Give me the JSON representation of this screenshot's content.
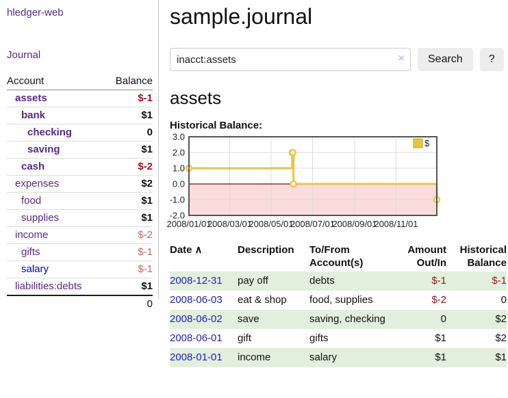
{
  "app": {
    "brand": "hledger-web"
  },
  "sidebar": {
    "nav_journal": "Journal",
    "headers": {
      "account": "Account",
      "balance": "Balance"
    },
    "accounts": [
      {
        "name": "assets",
        "depth": 0,
        "bold": true,
        "balance": "$-1",
        "balance_style": "neg-strong"
      },
      {
        "name": "bank",
        "depth": 1,
        "bold": true,
        "balance": "$1",
        "balance_style": "pos"
      },
      {
        "name": "checking",
        "depth": 2,
        "bold": true,
        "balance": "0",
        "balance_style": "pos"
      },
      {
        "name": "saving",
        "depth": 2,
        "bold": true,
        "balance": "$1",
        "balance_style": "pos"
      },
      {
        "name": "cash",
        "depth": 1,
        "bold": true,
        "balance": "$-2",
        "balance_style": "neg-strong"
      },
      {
        "name": "expenses",
        "depth": 0,
        "bold": false,
        "balance": "$2",
        "balance_style": "pos"
      },
      {
        "name": "food",
        "depth": 1,
        "bold": false,
        "balance": "$1",
        "balance_style": "pos"
      },
      {
        "name": "supplies",
        "depth": 1,
        "bold": false,
        "balance": "$1",
        "balance_style": "pos"
      },
      {
        "name": "income",
        "depth": 0,
        "bold": false,
        "balance": "$-2",
        "balance_style": "neg-soft"
      },
      {
        "name": "gifts",
        "depth": 1,
        "bold": false,
        "balance": "$-1",
        "balance_style": "neg-soft"
      },
      {
        "name": "salary",
        "depth": 1,
        "bold": false,
        "blue": true,
        "balance": "$-1",
        "balance_style": "neg-soft"
      },
      {
        "name": "liabilities:debts",
        "depth": 0,
        "bold": false,
        "balance": "$1",
        "balance_style": "pos"
      }
    ],
    "total": "0"
  },
  "header": {
    "title": "sample.journal"
  },
  "search": {
    "value": "inacct:assets",
    "clear_icon": "×",
    "button_label": "Search",
    "help_label": "?"
  },
  "account_page": {
    "heading": "assets",
    "chart_label": "Historical Balance:"
  },
  "chart_data": {
    "type": "line",
    "title": "Historical Balance:",
    "step": true,
    "grid": true,
    "legend_position": "top-right",
    "xlim": [
      "2008-01-01",
      "2008-12-31"
    ],
    "ylim": [
      -2,
      3
    ],
    "x_ticks": [
      "2008/01/01",
      "2008/03/01",
      "2008/05/01",
      "2008/07/01",
      "2008/09/01",
      "2008/11/01"
    ],
    "y_ticks": [
      "3.0",
      "2.0",
      "1.0",
      "0.0",
      "-1.0",
      "-2.0"
    ],
    "series": [
      {
        "name": "$",
        "color": "#e9c63f",
        "points": [
          [
            "2008-01-01",
            1.0
          ],
          [
            "2008-06-01",
            2.0
          ],
          [
            "2008-06-02",
            2.0
          ],
          [
            "2008-06-03",
            0.0
          ],
          [
            "2008-12-31",
            -1.0
          ]
        ]
      }
    ],
    "negative_region_fill": "#fbdcdc",
    "zero_line_color": "#8b0000",
    "gridline_color": "#dddddd",
    "border_color": "#545454"
  },
  "register": {
    "headers": {
      "date": "Date",
      "sort_indicator": "∧",
      "description": "Description",
      "account": "To/From Account(s)",
      "amount": "Amount Out/In",
      "balance": "Historical Balance"
    },
    "rows": [
      {
        "date": "2008-12-31",
        "description": "pay off",
        "accounts": "debts",
        "amount": "$-1",
        "amount_neg": true,
        "balance": "$-1",
        "balance_neg": true,
        "shade": true
      },
      {
        "date": "2008-06-03",
        "description": "eat & shop",
        "accounts": "food, supplies",
        "amount": "$-2",
        "amount_neg": true,
        "balance": "0",
        "balance_neg": false,
        "shade": false
      },
      {
        "date": "2008-06-02",
        "description": "save",
        "accounts": "saving, checking",
        "amount": "0",
        "amount_neg": false,
        "balance": "$2",
        "balance_neg": false,
        "shade": true
      },
      {
        "date": "2008-06-01",
        "description": "gift",
        "accounts": "gifts",
        "amount": "$1",
        "amount_neg": false,
        "balance": "$2",
        "balance_neg": false,
        "shade": false
      },
      {
        "date": "2008-01-01",
        "description": "income",
        "accounts": "salary",
        "amount": "$1",
        "amount_neg": false,
        "balance": "$1",
        "balance_neg": false,
        "shade": true
      }
    ]
  },
  "colors": {
    "link_purple": "#552a8b",
    "link_blue": "#0000e0",
    "date_link_blue": "#2020d0",
    "negative_strong": "#a31515",
    "negative_table": "#8b1a1a",
    "negative_soft": "#bb6a6e",
    "row_highlight_green": "#e2efdc",
    "chart_line_gold": "#e9c63f",
    "chart_negative_fill": "#fbdcdc",
    "chart_zero_line": "#8b0000",
    "button_gray": "#ededed"
  }
}
